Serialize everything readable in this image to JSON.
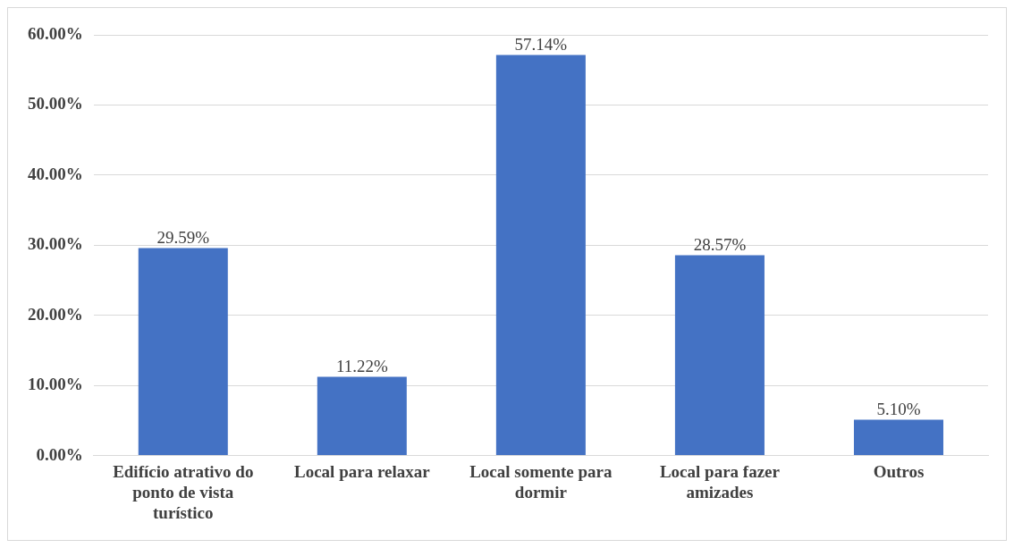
{
  "chart_data": {
    "type": "bar",
    "categories": [
      "Edifício atrativo do ponto de vista turístico",
      "Local para relaxar",
      "Local somente para dormir",
      "Local para fazer amizades",
      "Outros"
    ],
    "values": [
      29.59,
      11.22,
      57.14,
      28.57,
      5.1
    ],
    "value_labels": [
      "29.59%",
      "11.22%",
      "57.14%",
      "28.57%",
      "5.10%"
    ],
    "color": "#4472c4",
    "ylim": [
      0,
      60
    ],
    "yticks": [
      {
        "value": 0,
        "label": "0.00%"
      },
      {
        "value": 10,
        "label": "10.00%"
      },
      {
        "value": 20,
        "label": "20.00%"
      },
      {
        "value": 30,
        "label": "30.00%"
      },
      {
        "value": 40,
        "label": "40.00%"
      },
      {
        "value": 50,
        "label": "50.00%"
      },
      {
        "value": 60,
        "label": "60.00%"
      }
    ],
    "grid": "y",
    "legend": false
  }
}
